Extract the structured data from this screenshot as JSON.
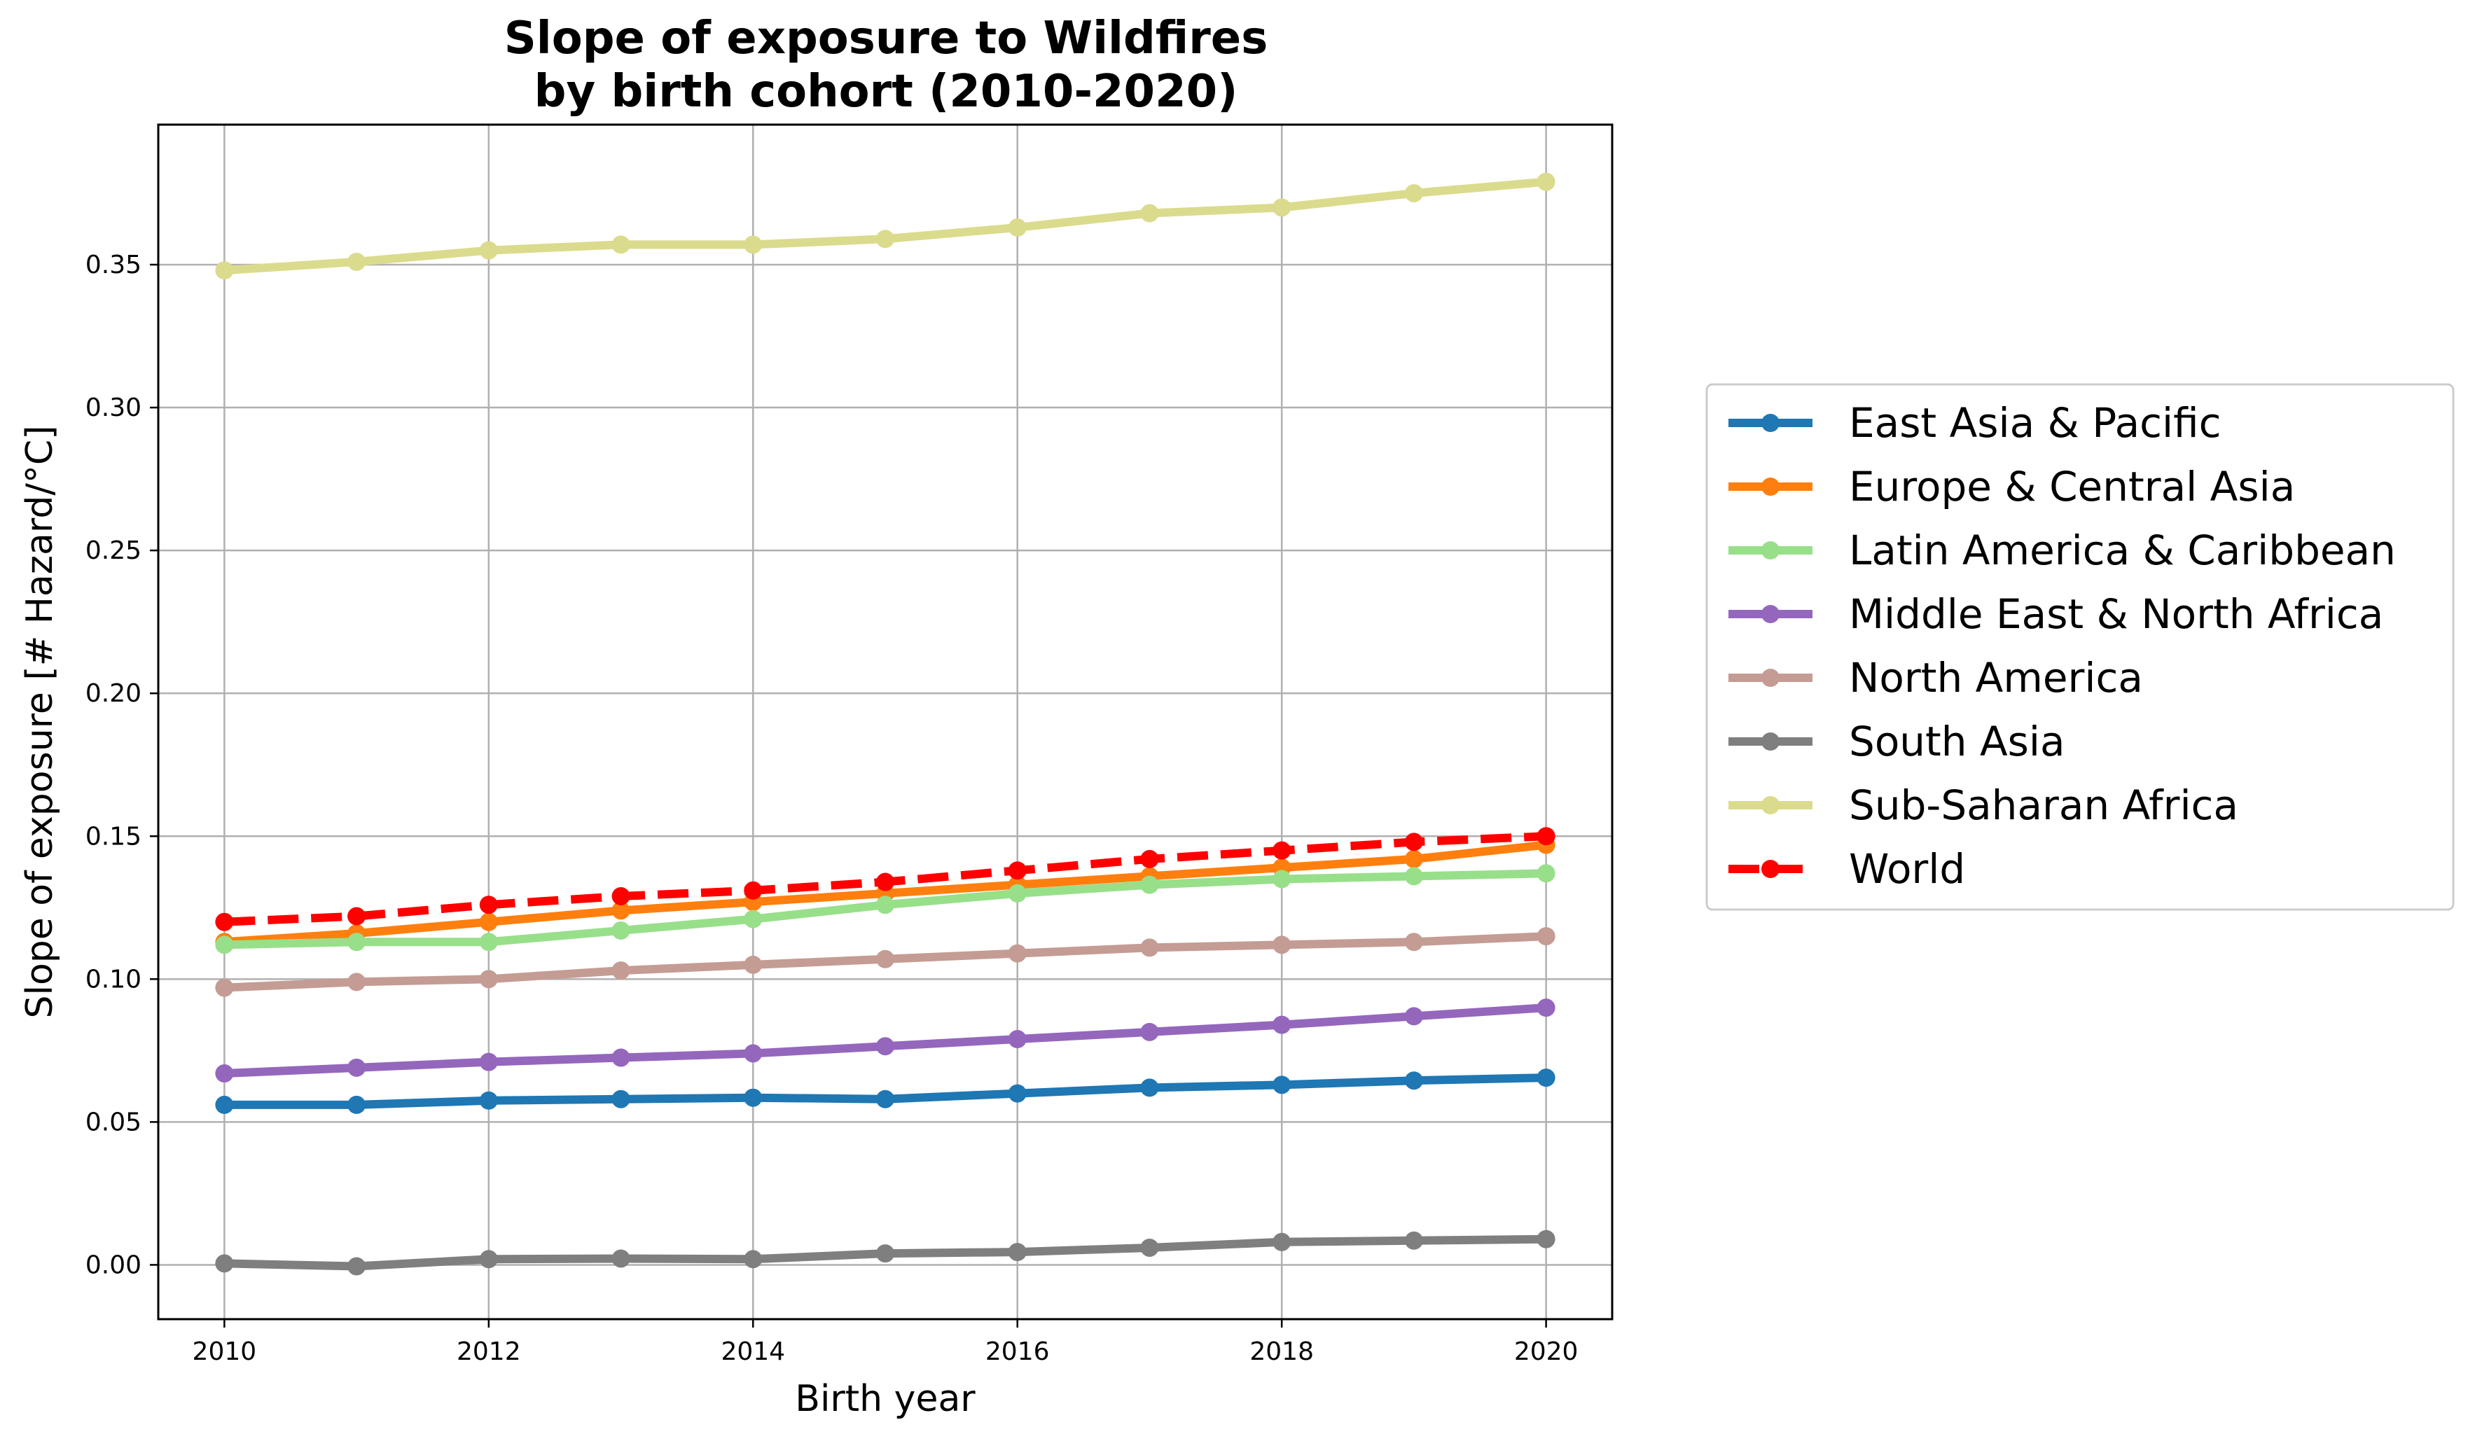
{
  "chart_data": {
    "type": "line",
    "title": [
      "Slope of exposure to Wildfires",
      "by birth cohort (2010-2020)"
    ],
    "xlabel": "Birth year",
    "ylabel": "Slope of exposure [# Hazard/°C]",
    "x": [
      2010,
      2011,
      2012,
      2013,
      2014,
      2015,
      2016,
      2017,
      2018,
      2019,
      2020
    ],
    "xlim": [
      2009.5,
      2020.5
    ],
    "ylim": [
      -0.019,
      0.399
    ],
    "xticks": [
      2010,
      2012,
      2014,
      2016,
      2018,
      2020
    ],
    "xtick_labels": [
      "2010",
      "2012",
      "2014",
      "2016",
      "2018",
      "2020"
    ],
    "yticks": [
      0.0,
      0.05,
      0.1,
      0.15,
      0.2,
      0.25,
      0.3,
      0.35
    ],
    "ytick_labels": [
      "0.00",
      "0.05",
      "0.10",
      "0.15",
      "0.20",
      "0.25",
      "0.30",
      "0.35"
    ],
    "grid": true,
    "legend_position": "outside-right",
    "series": [
      {
        "name": "East Asia & Pacific",
        "color": "#1f77b4",
        "dashed": false,
        "values": [
          0.056,
          0.056,
          0.0575,
          0.058,
          0.0585,
          0.058,
          0.06,
          0.062,
          0.063,
          0.0645,
          0.0655
        ]
      },
      {
        "name": "Europe & Central Asia",
        "color": "#ff7f0e",
        "dashed": false,
        "values": [
          0.113,
          0.116,
          0.12,
          0.124,
          0.127,
          0.13,
          0.133,
          0.136,
          0.139,
          0.142,
          0.147
        ]
      },
      {
        "name": "Latin America & Caribbean",
        "color": "#98df8a",
        "dashed": false,
        "values": [
          0.112,
          0.113,
          0.113,
          0.117,
          0.121,
          0.126,
          0.13,
          0.133,
          0.135,
          0.136,
          0.137
        ]
      },
      {
        "name": "Middle East & North Africa",
        "color": "#9467bd",
        "dashed": false,
        "values": [
          0.067,
          0.069,
          0.071,
          0.0725,
          0.074,
          0.0765,
          0.079,
          0.0815,
          0.084,
          0.087,
          0.09
        ]
      },
      {
        "name": "North America",
        "color": "#c49c94",
        "dashed": false,
        "values": [
          0.097,
          0.099,
          0.1,
          0.103,
          0.105,
          0.107,
          0.109,
          0.111,
          0.112,
          0.113,
          0.115
        ]
      },
      {
        "name": "South Asia",
        "color": "#7f7f7f",
        "dashed": false,
        "values": [
          0.0005,
          -0.0005,
          0.002,
          0.0022,
          0.002,
          0.004,
          0.0045,
          0.006,
          0.008,
          0.0085,
          0.009
        ]
      },
      {
        "name": "Sub-Saharan Africa",
        "color": "#dbdb8d",
        "dashed": false,
        "values": [
          0.348,
          0.351,
          0.355,
          0.357,
          0.357,
          0.359,
          0.363,
          0.368,
          0.37,
          0.375,
          0.379
        ]
      },
      {
        "name": "World",
        "color": "#ff0000",
        "dashed": true,
        "values": [
          0.12,
          0.122,
          0.126,
          0.129,
          0.131,
          0.134,
          0.138,
          0.142,
          0.145,
          0.148,
          0.15
        ]
      }
    ]
  }
}
